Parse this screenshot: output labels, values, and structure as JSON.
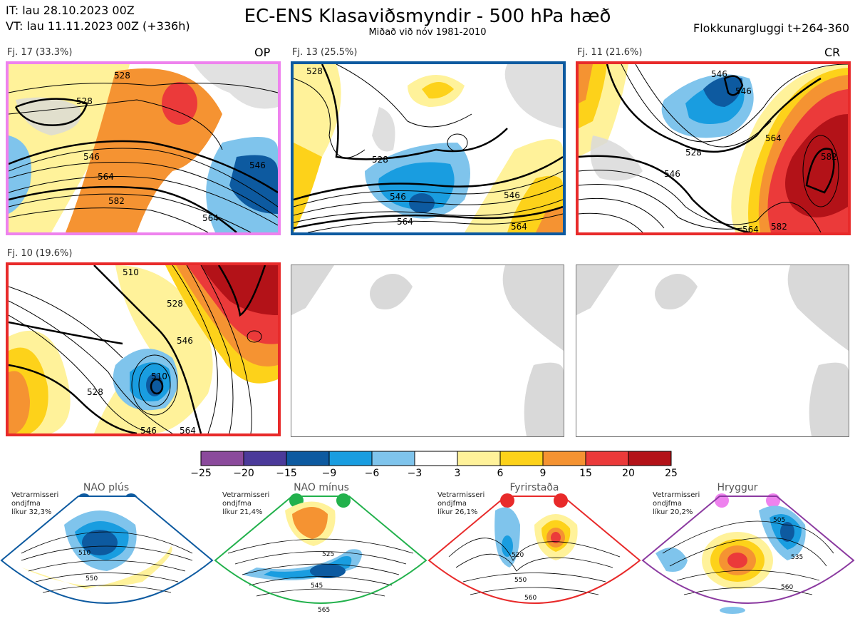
{
  "header": {
    "it": "IT: lau 28.10.2023 00Z",
    "vt": "VT: lau 11.11.2023 00Z  (+336h)",
    "title": "EC-ENS Klasaviðsmyndir - 500 hPa hæð",
    "subtitle": "Miðað við nóv 1981-2010",
    "window": "Flokkunargluggi t+264-360"
  },
  "panels": [
    {
      "label": "Fj. 17 (33.3%)",
      "tag": "OP",
      "border": "#ee82ee",
      "contours": [
        "528",
        "546",
        "564",
        "582",
        "564",
        "546",
        "528"
      ]
    },
    {
      "label": "Fj. 13 (25.5%)",
      "tag": "",
      "border": "#0d5aa0",
      "contours": [
        "528",
        "528",
        "546",
        "564",
        "546",
        "564"
      ]
    },
    {
      "label": "Fj. 11 (21.6%)",
      "tag": "CR",
      "border": "#e82a2a",
      "contours": [
        "546",
        "528",
        "546",
        "564",
        "582",
        "564",
        "582",
        "546"
      ]
    },
    {
      "label": "Fj. 10 (19.6%)",
      "tag": "",
      "border": "#e82a2a",
      "contours": [
        "510",
        "528",
        "546",
        "528",
        "546",
        "564",
        "510"
      ]
    }
  ],
  "colorbar": {
    "colors": [
      "#8b4a9c",
      "#4b3a9a",
      "#0d5aa0",
      "#199de0",
      "#7fc4ec",
      "#ffffff",
      "#fff29a",
      "#fdd21a",
      "#f59332",
      "#eb3a3a",
      "#b31218"
    ],
    "ticks": [
      "−25",
      "−20",
      "−15",
      "−9",
      "−6",
      "−3",
      "3",
      "6",
      "9",
      "15",
      "20",
      "25"
    ]
  },
  "regimes": [
    {
      "name": "NAO plús",
      "note": [
        "Vetrarmisseri",
        "ondjfma",
        "líkur 32,3%"
      ],
      "color": "#0d5aa0",
      "contours": [
        "510",
        "550"
      ]
    },
    {
      "name": "NAO mínus",
      "note": [
        "Vetrarmisseri",
        "ondjfma",
        "líkur 21,4%"
      ],
      "color": "#22b14c",
      "contours": [
        "525",
        "545",
        "565"
      ]
    },
    {
      "name": "Fyrirstaða",
      "note": [
        "Vetrarmisseri",
        "ondjfma",
        "líkur 26,1%"
      ],
      "color": "#e82a2a",
      "contours": [
        "520",
        "550",
        "560"
      ]
    },
    {
      "name": "Hryggur",
      "note": [
        "Vetrarmisseri",
        "ondjfma",
        "líkur 20,2%"
      ],
      "color": "#ee82ee",
      "contours": [
        "505",
        "535",
        "560"
      ]
    }
  ]
}
